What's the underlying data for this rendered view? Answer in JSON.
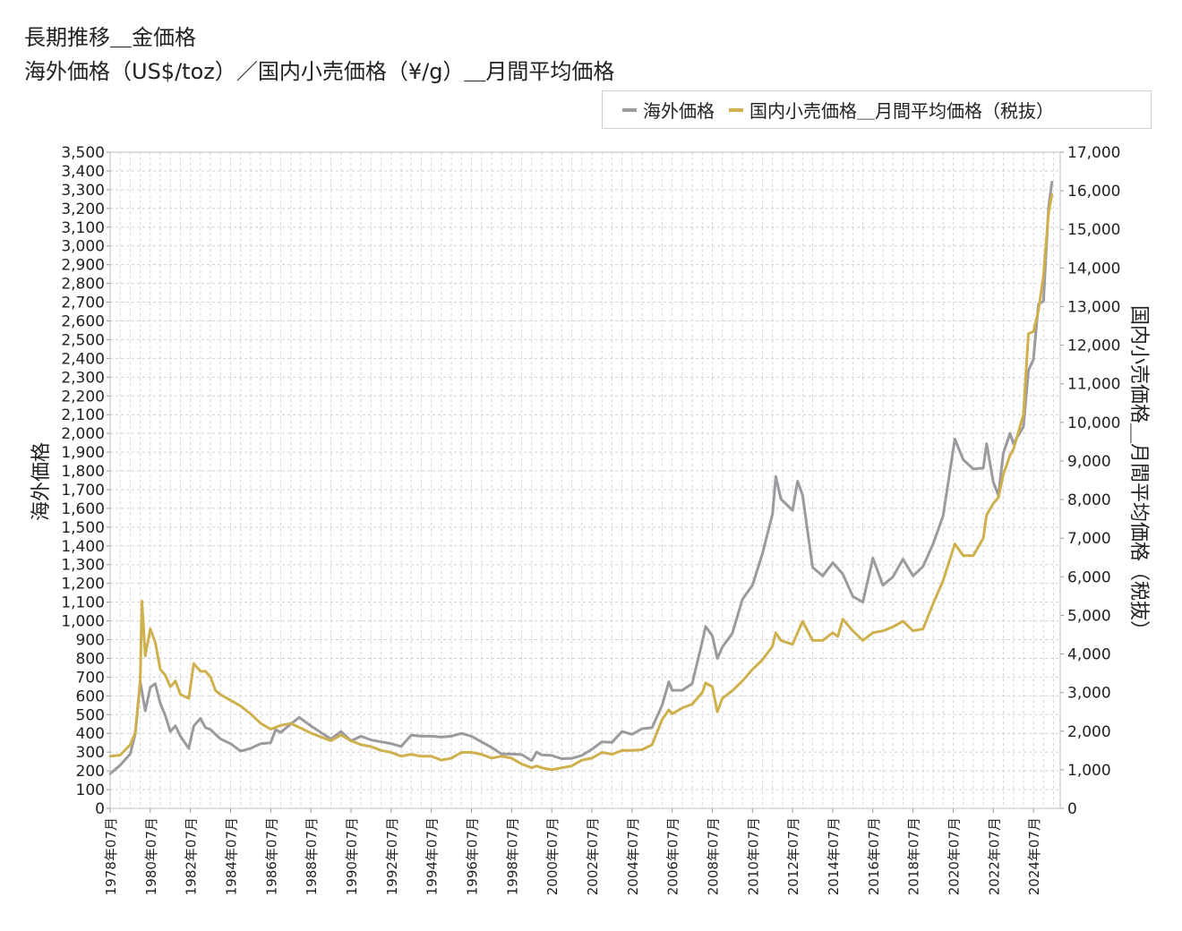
{
  "chart_data": {
    "type": "line",
    "title": "長期推移＿金価格",
    "subtitle": "海外価格（US$/toz）／国内小売価格（¥/g）＿月間平均価格",
    "ylabel": "海外価格",
    "y2label": "国内小売価格＿月間平均価格（税抜）",
    "ylim": [
      0,
      3500
    ],
    "y2lim": [
      0,
      17000
    ],
    "yticks": [
      0,
      100,
      200,
      300,
      400,
      500,
      600,
      700,
      800,
      900,
      1000,
      1100,
      1200,
      1300,
      1400,
      1500,
      1600,
      1700,
      1800,
      1900,
      2000,
      2100,
      2200,
      2300,
      2400,
      2500,
      2600,
      2700,
      2800,
      2900,
      3000,
      3100,
      3200,
      3300,
      3400,
      3500
    ],
    "y2ticks": [
      0,
      1000,
      2000,
      3000,
      4000,
      5000,
      6000,
      7000,
      8000,
      9000,
      10000,
      11000,
      12000,
      13000,
      14000,
      15000,
      16000,
      17000
    ],
    "xticks": [
      "1978年07月",
      "1980年07月",
      "1982年07月",
      "1984年07月",
      "1986年07月",
      "1988年07月",
      "1990年07月",
      "1992年07月",
      "1994年07月",
      "1996年07月",
      "1998年07月",
      "2000年07月",
      "2002年07月",
      "2004年07月",
      "2006年07月",
      "2008年07月",
      "2010年07月",
      "2012年07月",
      "2014年07月",
      "2016年07月",
      "2018年07月",
      "2020年07月",
      "2022年07月",
      "2024年07月"
    ],
    "grid": true,
    "legend_position": "top-right",
    "series": [
      {
        "name": "海外価格",
        "axis": "left",
        "color": "#9a9a9f",
        "points": [
          [
            "1978-07",
            185
          ],
          [
            "1979-01",
            230
          ],
          [
            "1979-07",
            290
          ],
          [
            "1979-10",
            395
          ],
          [
            "1980-01",
            675
          ],
          [
            "1980-04",
            520
          ],
          [
            "1980-07",
            645
          ],
          [
            "1980-10",
            665
          ],
          [
            "1981-01",
            560
          ],
          [
            "1981-04",
            495
          ],
          [
            "1981-07",
            410
          ],
          [
            "1981-10",
            440
          ],
          [
            "1982-01",
            385
          ],
          [
            "1982-06",
            320
          ],
          [
            "1982-09",
            440
          ],
          [
            "1983-01",
            480
          ],
          [
            "1983-04",
            430
          ],
          [
            "1983-07",
            420
          ],
          [
            "1983-10",
            395
          ],
          [
            "1984-01",
            370
          ],
          [
            "1984-07",
            345
          ],
          [
            "1985-01",
            305
          ],
          [
            "1985-07",
            320
          ],
          [
            "1986-01",
            345
          ],
          [
            "1986-07",
            350
          ],
          [
            "1986-10",
            420
          ],
          [
            "1987-01",
            405
          ],
          [
            "1987-07",
            450
          ],
          [
            "1987-12",
            485
          ],
          [
            "1988-07",
            440
          ],
          [
            "1989-01",
            405
          ],
          [
            "1989-07",
            370
          ],
          [
            "1990-01",
            410
          ],
          [
            "1990-07",
            360
          ],
          [
            "1991-01",
            385
          ],
          [
            "1991-07",
            365
          ],
          [
            "1992-01",
            355
          ],
          [
            "1992-07",
            345
          ],
          [
            "1993-01",
            330
          ],
          [
            "1993-07",
            390
          ],
          [
            "1994-01",
            385
          ],
          [
            "1994-07",
            385
          ],
          [
            "1995-01",
            380
          ],
          [
            "1995-07",
            385
          ],
          [
            "1996-01",
            400
          ],
          [
            "1996-07",
            385
          ],
          [
            "1997-01",
            355
          ],
          [
            "1997-07",
            325
          ],
          [
            "1998-01",
            290
          ],
          [
            "1998-07",
            290
          ],
          [
            "1999-01",
            287
          ],
          [
            "1999-07",
            255
          ],
          [
            "1999-10",
            300
          ],
          [
            "2000-01",
            285
          ],
          [
            "2000-07",
            282
          ],
          [
            "2001-01",
            265
          ],
          [
            "2001-07",
            267
          ],
          [
            "2002-01",
            282
          ],
          [
            "2002-07",
            315
          ],
          [
            "2003-01",
            355
          ],
          [
            "2003-07",
            352
          ],
          [
            "2004-01",
            410
          ],
          [
            "2004-07",
            395
          ],
          [
            "2005-01",
            425
          ],
          [
            "2005-07",
            430
          ],
          [
            "2006-01",
            550
          ],
          [
            "2006-05",
            675
          ],
          [
            "2006-07",
            630
          ],
          [
            "2007-01",
            630
          ],
          [
            "2007-07",
            665
          ],
          [
            "2008-01",
            890
          ],
          [
            "2008-03",
            970
          ],
          [
            "2008-07",
            920
          ],
          [
            "2008-10",
            800
          ],
          [
            "2009-01",
            860
          ],
          [
            "2009-07",
            935
          ],
          [
            "2010-01",
            1115
          ],
          [
            "2010-07",
            1190
          ],
          [
            "2011-01",
            1360
          ],
          [
            "2011-07",
            1570
          ],
          [
            "2011-09",
            1770
          ],
          [
            "2011-12",
            1650
          ],
          [
            "2012-07",
            1590
          ],
          [
            "2012-10",
            1745
          ],
          [
            "2013-01",
            1670
          ],
          [
            "2013-07",
            1285
          ],
          [
            "2014-01",
            1240
          ],
          [
            "2014-07",
            1310
          ],
          [
            "2015-01",
            1250
          ],
          [
            "2015-07",
            1130
          ],
          [
            "2016-01",
            1100
          ],
          [
            "2016-07",
            1335
          ],
          [
            "2017-01",
            1190
          ],
          [
            "2017-07",
            1235
          ],
          [
            "2018-01",
            1330
          ],
          [
            "2018-07",
            1240
          ],
          [
            "2019-01",
            1290
          ],
          [
            "2019-07",
            1410
          ],
          [
            "2020-01",
            1560
          ],
          [
            "2020-08",
            1970
          ],
          [
            "2021-01",
            1860
          ],
          [
            "2021-07",
            1810
          ],
          [
            "2022-01",
            1815
          ],
          [
            "2022-03",
            1945
          ],
          [
            "2022-07",
            1740
          ],
          [
            "2022-10",
            1670
          ],
          [
            "2023-01",
            1895
          ],
          [
            "2023-05",
            2000
          ],
          [
            "2023-07",
            1945
          ],
          [
            "2024-01",
            2035
          ],
          [
            "2024-04",
            2335
          ],
          [
            "2024-07",
            2395
          ],
          [
            "2024-10",
            2690
          ],
          [
            "2025-01",
            2705
          ],
          [
            "2025-04",
            3200
          ],
          [
            "2025-06",
            3340
          ]
        ]
      },
      {
        "name": "国内小売価格＿月間平均価格（税抜）",
        "axis": "right",
        "color": "#cfb04e",
        "points": [
          [
            "1978-07",
            1350
          ],
          [
            "1979-01",
            1380
          ],
          [
            "1979-07",
            1650
          ],
          [
            "1979-10",
            1950
          ],
          [
            "1980-01",
            3300
          ],
          [
            "1980-02",
            5370
          ],
          [
            "1980-04",
            3950
          ],
          [
            "1980-07",
            4650
          ],
          [
            "1980-10",
            4300
          ],
          [
            "1981-01",
            3600
          ],
          [
            "1981-04",
            3450
          ],
          [
            "1981-07",
            3150
          ],
          [
            "1981-10",
            3300
          ],
          [
            "1982-01",
            2950
          ],
          [
            "1982-06",
            2850
          ],
          [
            "1982-09",
            3750
          ],
          [
            "1983-01",
            3550
          ],
          [
            "1983-04",
            3550
          ],
          [
            "1983-07",
            3400
          ],
          [
            "1983-10",
            3050
          ],
          [
            "1984-01",
            2950
          ],
          [
            "1984-07",
            2800
          ],
          [
            "1985-01",
            2650
          ],
          [
            "1985-07",
            2450
          ],
          [
            "1986-01",
            2200
          ],
          [
            "1986-07",
            2050
          ],
          [
            "1987-01",
            2150
          ],
          [
            "1987-07",
            2200
          ],
          [
            "1987-12",
            2100
          ],
          [
            "1988-07",
            1950
          ],
          [
            "1989-01",
            1850
          ],
          [
            "1989-07",
            1750
          ],
          [
            "1990-01",
            1900
          ],
          [
            "1990-07",
            1750
          ],
          [
            "1991-01",
            1650
          ],
          [
            "1991-07",
            1600
          ],
          [
            "1992-01",
            1500
          ],
          [
            "1992-07",
            1450
          ],
          [
            "1993-01",
            1350
          ],
          [
            "1993-07",
            1400
          ],
          [
            "1994-01",
            1350
          ],
          [
            "1994-07",
            1350
          ],
          [
            "1995-01",
            1250
          ],
          [
            "1995-07",
            1300
          ],
          [
            "1996-01",
            1450
          ],
          [
            "1996-07",
            1450
          ],
          [
            "1997-01",
            1400
          ],
          [
            "1997-07",
            1300
          ],
          [
            "1998-01",
            1350
          ],
          [
            "1998-07",
            1300
          ],
          [
            "1999-01",
            1150
          ],
          [
            "1999-07",
            1050
          ],
          [
            "1999-10",
            1100
          ],
          [
            "2000-01",
            1050
          ],
          [
            "2000-07",
            1000
          ],
          [
            "2001-01",
            1050
          ],
          [
            "2001-07",
            1100
          ],
          [
            "2002-01",
            1250
          ],
          [
            "2002-07",
            1300
          ],
          [
            "2003-01",
            1450
          ],
          [
            "2003-07",
            1400
          ],
          [
            "2004-01",
            1500
          ],
          [
            "2004-07",
            1500
          ],
          [
            "2005-01",
            1520
          ],
          [
            "2005-07",
            1650
          ],
          [
            "2006-01",
            2300
          ],
          [
            "2006-05",
            2550
          ],
          [
            "2006-07",
            2450
          ],
          [
            "2007-01",
            2600
          ],
          [
            "2007-07",
            2700
          ],
          [
            "2008-01",
            3000
          ],
          [
            "2008-03",
            3250
          ],
          [
            "2008-07",
            3150
          ],
          [
            "2008-10",
            2500
          ],
          [
            "2009-01",
            2850
          ],
          [
            "2009-07",
            3050
          ],
          [
            "2010-01",
            3300
          ],
          [
            "2010-07",
            3600
          ],
          [
            "2011-01",
            3850
          ],
          [
            "2011-07",
            4200
          ],
          [
            "2011-09",
            4550
          ],
          [
            "2011-12",
            4350
          ],
          [
            "2012-07",
            4250
          ],
          [
            "2012-10",
            4550
          ],
          [
            "2013-01",
            4850
          ],
          [
            "2013-07",
            4350
          ],
          [
            "2014-01",
            4350
          ],
          [
            "2014-07",
            4550
          ],
          [
            "2014-10",
            4450
          ],
          [
            "2015-01",
            4900
          ],
          [
            "2015-07",
            4600
          ],
          [
            "2016-01",
            4350
          ],
          [
            "2016-07",
            4550
          ],
          [
            "2017-01",
            4600
          ],
          [
            "2017-07",
            4700
          ],
          [
            "2018-01",
            4850
          ],
          [
            "2018-07",
            4600
          ],
          [
            "2019-01",
            4650
          ],
          [
            "2019-07",
            5300
          ],
          [
            "2020-01",
            5900
          ],
          [
            "2020-08",
            6850
          ],
          [
            "2021-01",
            6550
          ],
          [
            "2021-07",
            6550
          ],
          [
            "2022-01",
            7000
          ],
          [
            "2022-03",
            7600
          ],
          [
            "2022-07",
            7900
          ],
          [
            "2022-10",
            8050
          ],
          [
            "2023-01",
            8650
          ],
          [
            "2023-05",
            9150
          ],
          [
            "2023-07",
            9300
          ],
          [
            "2024-01",
            10200
          ],
          [
            "2024-04",
            12300
          ],
          [
            "2024-07",
            12350
          ],
          [
            "2024-10",
            12900
          ],
          [
            "2025-01",
            13800
          ],
          [
            "2025-04",
            15400
          ],
          [
            "2025-06",
            15900
          ]
        ]
      }
    ]
  }
}
